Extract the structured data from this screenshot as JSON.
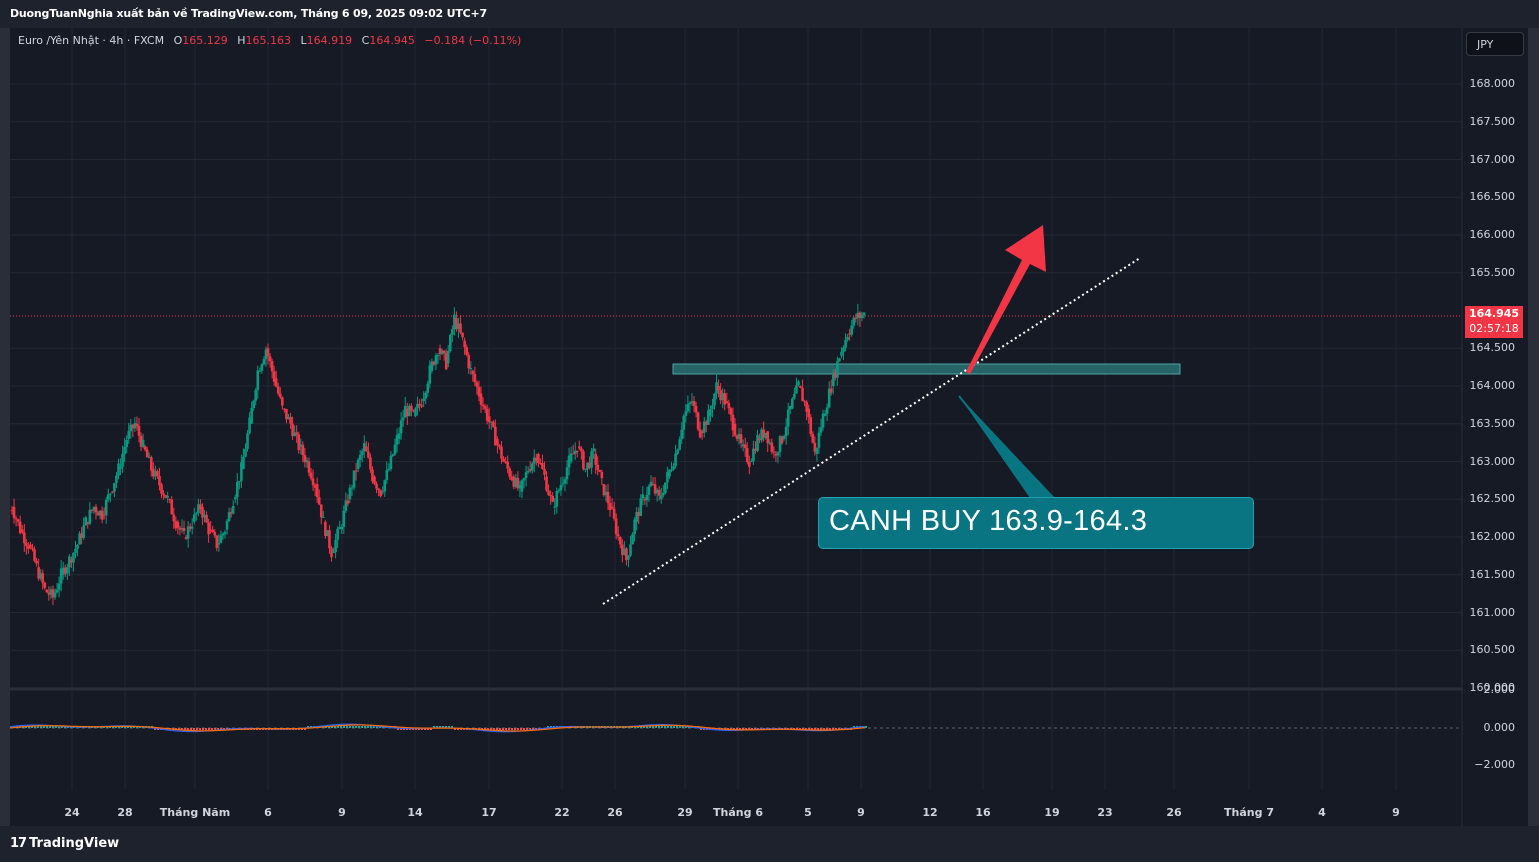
{
  "header": {
    "publisher_line": "DuongTuanNghia xuất bản về TradingView.com, Tháng 6 09, 2025 09:02 UTC+7"
  },
  "legend": {
    "symbol": "Euro /Yên Nhật · 4h · FXCM",
    "o_label": "O",
    "o_value": "165.129",
    "h_label": "H",
    "h_value": "165.163",
    "l_label": "L",
    "l_value": "164.919",
    "c_label": "C",
    "c_value": "164.945",
    "change": "−0.184 (−0.11%)"
  },
  "currency_button": "JPY",
  "price_axis": [
    "168.000",
    "167.500",
    "167.000",
    "166.500",
    "166.000",
    "165.500",
    "164.500",
    "164.000",
    "163.500",
    "163.000",
    "162.500",
    "162.000",
    "161.500",
    "161.000",
    "160.500",
    "160.000"
  ],
  "oscillator_axis": [
    "2.000",
    "0.000",
    "−2.000"
  ],
  "time_axis": [
    "24",
    "28",
    "Tháng Năm",
    "6",
    "9",
    "14",
    "17",
    "22",
    "26",
    "29",
    "Tháng 6",
    "5",
    "9",
    "12",
    "16",
    "19",
    "23",
    "26",
    "Tháng 7",
    "4",
    "9"
  ],
  "last_price": {
    "price": "164.945",
    "countdown": "02:57:18"
  },
  "annotation": {
    "text": "CANH BUY 163.9-164.3"
  },
  "footer": {
    "brand": "TradingView"
  },
  "colors": {
    "up": "#089981",
    "down": "#f23645",
    "background": "#161a25",
    "zone": "#2a6d6f",
    "callout": "#0a7582",
    "arrow": "#f23645"
  },
  "chart_data": {
    "type": "candlestick",
    "instrument": "Euro /Yên Nhật",
    "timeframe": "4h",
    "ylim": [
      159.9,
      168.6
    ],
    "grid": true,
    "closes": [
      162.4,
      162.1,
      161.9,
      161.6,
      161.3,
      161.2,
      161.5,
      161.7,
      161.9,
      162.2,
      162.4,
      162.3,
      162.6,
      162.9,
      163.3,
      163.5,
      163.2,
      162.9,
      162.7,
      162.5,
      162.2,
      162.0,
      162.2,
      162.4,
      162.1,
      161.9,
      162.1,
      162.5,
      162.9,
      163.5,
      164.2,
      164.5,
      164.1,
      163.7,
      163.5,
      163.2,
      163.0,
      162.7,
      162.2,
      161.8,
      162.1,
      162.5,
      162.9,
      163.2,
      162.8,
      162.6,
      162.9,
      163.3,
      163.7,
      163.6,
      163.8,
      164.2,
      164.5,
      164.3,
      164.9,
      164.6,
      164.2,
      163.9,
      163.6,
      163.3,
      163.0,
      162.8,
      162.6,
      162.9,
      163.1,
      162.8,
      162.4,
      162.7,
      163.0,
      163.2,
      162.9,
      163.1,
      162.7,
      162.4,
      162.0,
      161.7,
      162.2,
      162.5,
      162.7,
      162.5,
      162.8,
      163.1,
      163.6,
      163.8,
      163.4,
      163.6,
      164.0,
      163.8,
      163.5,
      163.2,
      163.0,
      163.3,
      163.4,
      163.1,
      163.3,
      163.7,
      164.0,
      163.7,
      163.1,
      163.6,
      164.0,
      164.4,
      164.7,
      164.9,
      164.95
    ],
    "ohlc_last": {
      "open": 165.129,
      "high": 165.163,
      "low": 164.919,
      "close": 164.945
    },
    "zone": [
      164.2,
      164.3
    ],
    "trendline": [
      [
        161.1,
        0
      ],
      [
        165.7,
        1
      ]
    ]
  }
}
